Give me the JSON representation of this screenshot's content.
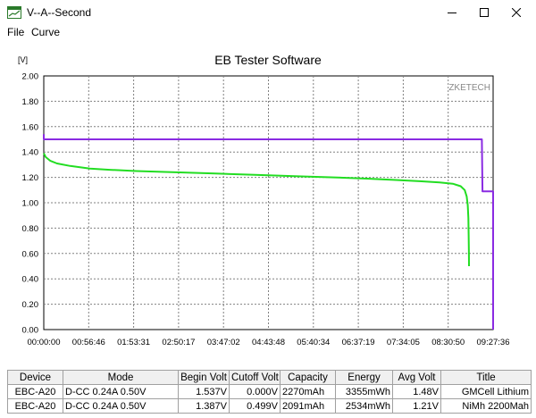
{
  "window": {
    "title": "V--A--Second"
  },
  "menu": {
    "items": [
      "File",
      "Curve"
    ]
  },
  "chart": {
    "title": "EB Tester Software",
    "watermark": "ZKETECH",
    "y_unit": "[V]",
    "colors": {
      "background": "#ffffff",
      "plot_bg": "#ffffff",
      "grid": "#808080",
      "series1": "#8a2be2",
      "series2": "#22dd22"
    }
  },
  "chart_data": {
    "type": "line",
    "title": "EB Tester Software",
    "ylabel": "[V]",
    "xlabel": "",
    "ylim": [
      0,
      2.0
    ],
    "yticks": [
      "0.00",
      "0.20",
      "0.40",
      "0.60",
      "0.80",
      "1.00",
      "1.20",
      "1.40",
      "1.60",
      "1.80",
      "2.00"
    ],
    "xticks": [
      "00:00:00",
      "00:56:46",
      "01:53:31",
      "02:50:17",
      "03:47:02",
      "04:43:48",
      "05:40:34",
      "06:37:19",
      "07:34:05",
      "08:30:50",
      "09:27:36"
    ],
    "xlim": [
      0,
      34056
    ],
    "grid": true,
    "series": [
      {
        "color": "#8a2be2",
        "points": [
          [
            0,
            1.54
          ],
          [
            0,
            1.5
          ],
          [
            33200,
            1.5
          ],
          [
            33250,
            1.09
          ],
          [
            34056,
            1.09
          ],
          [
            34056,
            0.0
          ]
        ]
      },
      {
        "color": "#22dd22",
        "points": [
          [
            0,
            1.39
          ],
          [
            150,
            1.36
          ],
          [
            500,
            1.33
          ],
          [
            1000,
            1.31
          ],
          [
            2000,
            1.29
          ],
          [
            3500,
            1.27
          ],
          [
            5000,
            1.26
          ],
          [
            7000,
            1.25
          ],
          [
            10000,
            1.24
          ],
          [
            13000,
            1.23
          ],
          [
            16000,
            1.22
          ],
          [
            19000,
            1.21
          ],
          [
            22000,
            1.2
          ],
          [
            24500,
            1.19
          ],
          [
            26500,
            1.18
          ],
          [
            28500,
            1.17
          ],
          [
            30000,
            1.16
          ],
          [
            31000,
            1.15
          ],
          [
            31600,
            1.13
          ],
          [
            31900,
            1.1
          ],
          [
            32050,
            1.05
          ],
          [
            32130,
            0.98
          ],
          [
            32180,
            0.88
          ],
          [
            32200,
            0.75
          ],
          [
            32220,
            0.6
          ],
          [
            32230,
            0.5
          ]
        ]
      }
    ]
  },
  "table": {
    "headers": [
      "Device",
      "Mode",
      "Begin Volt",
      "Cutoff Volt",
      "Capacity",
      "Energy",
      "Avg Volt",
      "Title"
    ],
    "rows": [
      {
        "device": "EBC-A20",
        "mode": "D-CC  0.24A  0.50V",
        "begin_volt": "1.537V",
        "cutoff_volt": "0.000V",
        "capacity": "2270mAh",
        "energy": "3355mWh",
        "avg_volt": "1.48V",
        "title": "GMCell Lithium"
      },
      {
        "device": "EBC-A20",
        "mode": "D-CC  0.24A  0.50V",
        "begin_volt": "1.387V",
        "cutoff_volt": "0.499V",
        "capacity": "2091mAh",
        "energy": "2534mWh",
        "avg_volt": "1.21V",
        "title": "NiMh 2200Mah"
      }
    ]
  }
}
